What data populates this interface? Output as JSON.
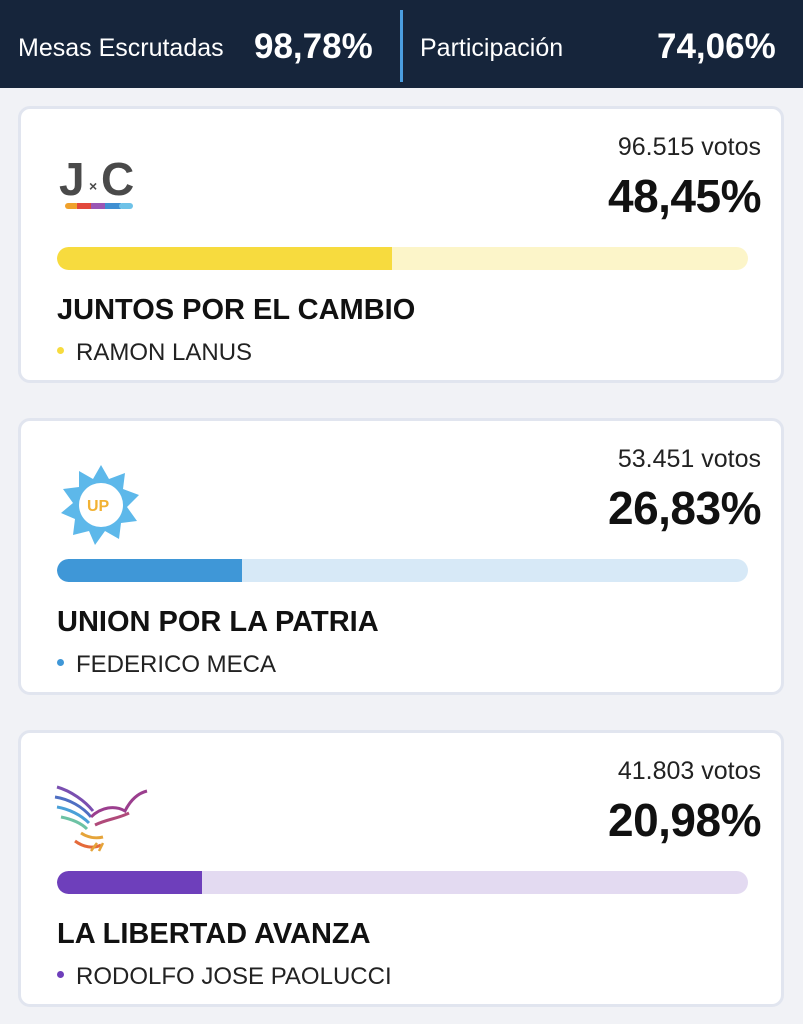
{
  "header": {
    "mesas_label": "Mesas Escrutadas",
    "mesas_value": "98,78%",
    "participacion_label": "Participación",
    "participacion_value": "74,06%"
  },
  "parties": [
    {
      "votes": "96.515 votos",
      "percent": "48,45%",
      "share": 0.4845,
      "name": "JUNTOS POR EL CAMBIO",
      "candidate": "RAMON LANUS",
      "logo_text": "J×C",
      "color": "#f7db3e",
      "track_color": "#fcf5c9"
    },
    {
      "votes": "53.451 votos",
      "percent": "26,83%",
      "share": 0.2683,
      "name": "UNION POR LA PATRIA",
      "candidate": "FEDERICO MECA",
      "logo_text": "UP",
      "color": "#3f97d7",
      "track_color": "#d7e9f7"
    },
    {
      "votes": "41.803 votos",
      "percent": "20,98%",
      "share": 0.2098,
      "name": "LA LIBERTAD AVANZA",
      "candidate": "RODOLFO JOSE PAOLUCCI",
      "color": "#6e3fbb",
      "track_color": "#e3daf1"
    }
  ]
}
